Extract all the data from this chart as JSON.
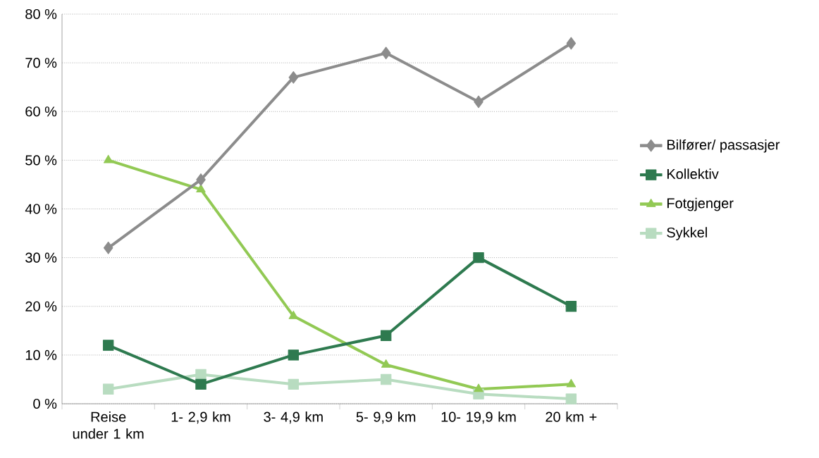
{
  "chart_data": {
    "type": "line",
    "categories": [
      "Reise under 1 km",
      "1- 2,9 km",
      "3- 4,9 km",
      "5- 9,9 km",
      "10- 19,9 km",
      "20 km +"
    ],
    "series": [
      {
        "name": "Bilfører/ passasjer",
        "color": "#8c8c8c",
        "marker": "diamond",
        "values": [
          32,
          46,
          67,
          72,
          62,
          74
        ]
      },
      {
        "name": "Kollektiv",
        "color": "#2e7a4f",
        "marker": "square",
        "values": [
          12,
          4,
          10,
          14,
          30,
          20
        ]
      },
      {
        "name": "Fotgjenger",
        "color": "#92c954",
        "marker": "triangle",
        "values": [
          50,
          44,
          18,
          8,
          3,
          4
        ]
      },
      {
        "name": "Sykkel",
        "color": "#b8dcc0",
        "marker": "square",
        "values": [
          3,
          6,
          4,
          5,
          2,
          1
        ]
      }
    ],
    "ylim": [
      0,
      80
    ],
    "yticks": [
      {
        "value": 0,
        "label": "0 %"
      },
      {
        "value": 10,
        "label": "10 %"
      },
      {
        "value": 20,
        "label": "20 %"
      },
      {
        "value": 30,
        "label": "30 %"
      },
      {
        "value": 40,
        "label": "40 %"
      },
      {
        "value": 50,
        "label": "50 %"
      },
      {
        "value": 60,
        "label": "60 %"
      },
      {
        "value": 70,
        "label": "70 %"
      },
      {
        "value": 80,
        "label": "80 %"
      }
    ],
    "grid": "y",
    "legend": "right",
    "line_style": "solid"
  }
}
